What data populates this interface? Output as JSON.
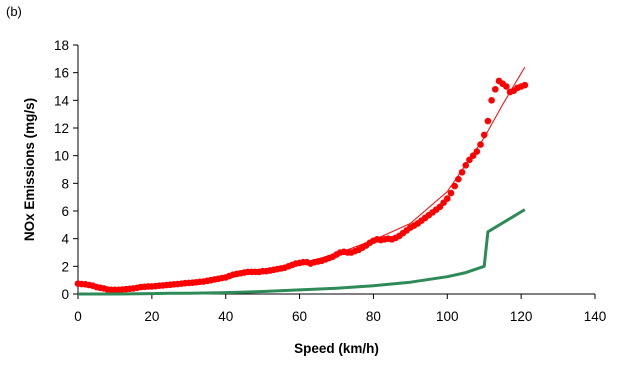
{
  "panel_label": "(b)",
  "chart_data": {
    "type": "scatter",
    "title": "",
    "xlabel": "Speed (km/h)",
    "ylabel": "NOx Emissions (mg/s)",
    "xlim": [
      0,
      140
    ],
    "ylim": [
      0,
      18
    ],
    "xticks": [
      0,
      20,
      40,
      60,
      80,
      100,
      120,
      140
    ],
    "yticks": [
      0,
      2,
      4,
      6,
      8,
      10,
      12,
      14,
      16,
      18
    ],
    "grid": false,
    "legend": "none",
    "series": [
      {
        "kind": "scatter",
        "color": "#ff0000",
        "points": [
          [
            0,
            0.75
          ],
          [
            1,
            0.72
          ],
          [
            2,
            0.7
          ],
          [
            3,
            0.65
          ],
          [
            4,
            0.6
          ],
          [
            5,
            0.5
          ],
          [
            6,
            0.45
          ],
          [
            7,
            0.4
          ],
          [
            8,
            0.32
          ],
          [
            9,
            0.3
          ],
          [
            10,
            0.3
          ],
          [
            11,
            0.3
          ],
          [
            12,
            0.32
          ],
          [
            13,
            0.35
          ],
          [
            14,
            0.38
          ],
          [
            15,
            0.4
          ],
          [
            16,
            0.45
          ],
          [
            17,
            0.5
          ],
          [
            18,
            0.52
          ],
          [
            19,
            0.55
          ],
          [
            20,
            0.55
          ],
          [
            21,
            0.57
          ],
          [
            22,
            0.6
          ],
          [
            23,
            0.62
          ],
          [
            24,
            0.65
          ],
          [
            25,
            0.67
          ],
          [
            26,
            0.7
          ],
          [
            27,
            0.72
          ],
          [
            28,
            0.75
          ],
          [
            29,
            0.78
          ],
          [
            30,
            0.8
          ],
          [
            31,
            0.82
          ],
          [
            32,
            0.85
          ],
          [
            33,
            0.88
          ],
          [
            34,
            0.9
          ],
          [
            35,
            0.95
          ],
          [
            36,
            1.0
          ],
          [
            37,
            1.05
          ],
          [
            38,
            1.1
          ],
          [
            39,
            1.15
          ],
          [
            40,
            1.2
          ],
          [
            41,
            1.3
          ],
          [
            42,
            1.4
          ],
          [
            43,
            1.45
          ],
          [
            44,
            1.5
          ],
          [
            45,
            1.55
          ],
          [
            46,
            1.6
          ],
          [
            47,
            1.6
          ],
          [
            48,
            1.6
          ],
          [
            49,
            1.6
          ],
          [
            50,
            1.65
          ],
          [
            51,
            1.65
          ],
          [
            52,
            1.7
          ],
          [
            53,
            1.75
          ],
          [
            54,
            1.8
          ],
          [
            55,
            1.85
          ],
          [
            56,
            1.9
          ],
          [
            57,
            2.0
          ],
          [
            58,
            2.1
          ],
          [
            59,
            2.2
          ],
          [
            60,
            2.25
          ],
          [
            61,
            2.3
          ],
          [
            62,
            2.3
          ],
          [
            63,
            2.2
          ],
          [
            64,
            2.3
          ],
          [
            65,
            2.35
          ],
          [
            66,
            2.4
          ],
          [
            67,
            2.5
          ],
          [
            68,
            2.6
          ],
          [
            69,
            2.7
          ],
          [
            70,
            2.85
          ],
          [
            71,
            3.0
          ],
          [
            72,
            3.05
          ],
          [
            73,
            3.0
          ],
          [
            74,
            3.0
          ],
          [
            75,
            3.1
          ],
          [
            76,
            3.2
          ],
          [
            77,
            3.35
          ],
          [
            78,
            3.5
          ],
          [
            79,
            3.7
          ],
          [
            80,
            3.85
          ],
          [
            81,
            3.95
          ],
          [
            82,
            3.9
          ],
          [
            83,
            3.95
          ],
          [
            84,
            4.0
          ],
          [
            85,
            3.95
          ],
          [
            86,
            4.05
          ],
          [
            87,
            4.2
          ],
          [
            88,
            4.4
          ],
          [
            89,
            4.6
          ],
          [
            90,
            4.8
          ],
          [
            91,
            4.95
          ],
          [
            92,
            5.1
          ],
          [
            93,
            5.3
          ],
          [
            94,
            5.5
          ],
          [
            95,
            5.7
          ],
          [
            96,
            5.9
          ],
          [
            97,
            6.1
          ],
          [
            98,
            6.3
          ],
          [
            99,
            6.6
          ],
          [
            100,
            6.9
          ],
          [
            101,
            7.3
          ],
          [
            102,
            7.8
          ],
          [
            103,
            8.3
          ],
          [
            104,
            8.8
          ],
          [
            105,
            9.3
          ],
          [
            106,
            9.7
          ],
          [
            107,
            10.0
          ],
          [
            108,
            10.3
          ],
          [
            109,
            10.8
          ],
          [
            110,
            11.5
          ],
          [
            111,
            12.5
          ],
          [
            112,
            14.0
          ],
          [
            113,
            14.8
          ],
          [
            114,
            15.4
          ],
          [
            115,
            15.2
          ],
          [
            116,
            15.0
          ],
          [
            117,
            14.6
          ],
          [
            118,
            14.7
          ],
          [
            119,
            14.9
          ],
          [
            120,
            15.0
          ],
          [
            121,
            15.1
          ]
        ]
      },
      {
        "kind": "trendline",
        "color": "#ff0000",
        "points": [
          [
            0,
            0.6
          ],
          [
            10,
            0.35
          ],
          [
            20,
            0.45
          ],
          [
            30,
            0.75
          ],
          [
            40,
            1.2
          ],
          [
            50,
            1.7
          ],
          [
            60,
            2.2
          ],
          [
            70,
            2.9
          ],
          [
            80,
            3.9
          ],
          [
            90,
            5.1
          ],
          [
            100,
            7.4
          ],
          [
            110,
            11.3
          ],
          [
            115,
            13.7
          ],
          [
            121,
            16.4
          ]
        ]
      },
      {
        "kind": "line",
        "color": "#2e8b57",
        "points": [
          [
            0,
            0.0
          ],
          [
            10,
            0.0
          ],
          [
            20,
            0.03
          ],
          [
            25,
            0.05
          ],
          [
            30,
            0.05
          ],
          [
            40,
            0.1
          ],
          [
            50,
            0.18
          ],
          [
            60,
            0.3
          ],
          [
            70,
            0.42
          ],
          [
            80,
            0.6
          ],
          [
            90,
            0.85
          ],
          [
            100,
            1.25
          ],
          [
            105,
            1.55
          ],
          [
            110,
            2.0
          ],
          [
            111,
            4.5
          ],
          [
            121,
            6.1
          ]
        ]
      }
    ]
  }
}
